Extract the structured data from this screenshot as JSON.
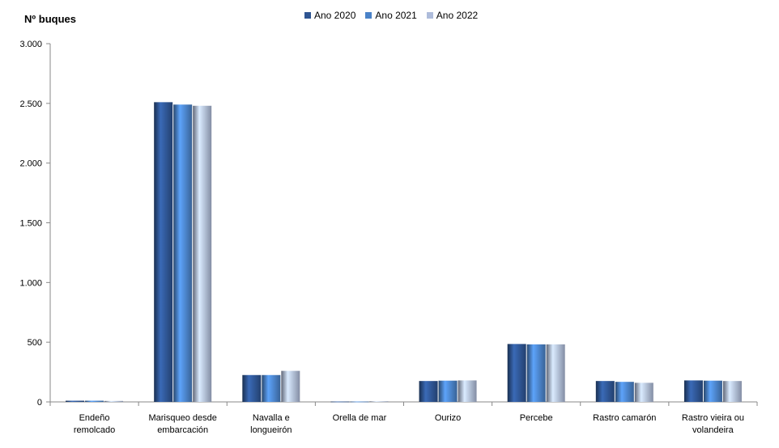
{
  "chart_data": {
    "type": "bar",
    "ylabel": "Nº buques",
    "categories": [
      [
        "Endeño",
        "remolcado"
      ],
      [
        "Marisqueo desde",
        "embarcación"
      ],
      [
        "Navalla e",
        "longueirón"
      ],
      [
        "Orella de mar"
      ],
      [
        "Ourizo"
      ],
      [
        "Percebe"
      ],
      [
        "Rastro camarón"
      ],
      [
        "Rastro vieira ou",
        "volandeira"
      ]
    ],
    "series": [
      {
        "name": "Ano 2020",
        "color": "#2e5592",
        "values": [
          10,
          2510,
          225,
          3,
          175,
          485,
          175,
          180
        ]
      },
      {
        "name": "Ano 2021",
        "color": "#4a82c8",
        "values": [
          10,
          2490,
          225,
          3,
          178,
          482,
          168,
          178
        ]
      },
      {
        "name": "Ano 2022",
        "color": "#aebcdb",
        "values": [
          8,
          2480,
          260,
          5,
          180,
          482,
          160,
          175
        ]
      }
    ],
    "ylim": [
      0,
      3000
    ],
    "yticks": [
      0,
      500,
      1000,
      1500,
      2000,
      2500,
      3000
    ],
    "ytick_labels": [
      "0",
      "500",
      "1.000",
      "1.500",
      "2.000",
      "2.500",
      "3.000"
    ],
    "legend_position": "top-center",
    "grid": false
  }
}
